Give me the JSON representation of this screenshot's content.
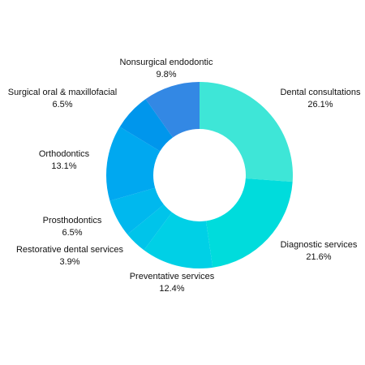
{
  "chart_data": {
    "type": "donut",
    "categories": [
      "Dental consultations",
      "Diagnostic services",
      "Preventative services",
      "Restorative dental services",
      "Prosthodontics",
      "Orthodontics",
      "Surgical oral & maxillofacial",
      "Nonsurgical endodontic"
    ],
    "values": [
      26.1,
      21.6,
      12.4,
      3.9,
      6.5,
      13.1,
      6.5,
      9.8
    ],
    "value_labels": [
      "26.1%",
      "21.6%",
      "12.4%",
      "3.9%",
      "6.5%",
      "13.1%",
      "6.5%",
      "9.8%"
    ],
    "colors": [
      "#3ee6d7",
      "#00dcdc",
      "#00d0e6",
      "#00c4ea",
      "#00b8ee",
      "#00a8f0",
      "#0096ec",
      "#3388e4"
    ]
  }
}
